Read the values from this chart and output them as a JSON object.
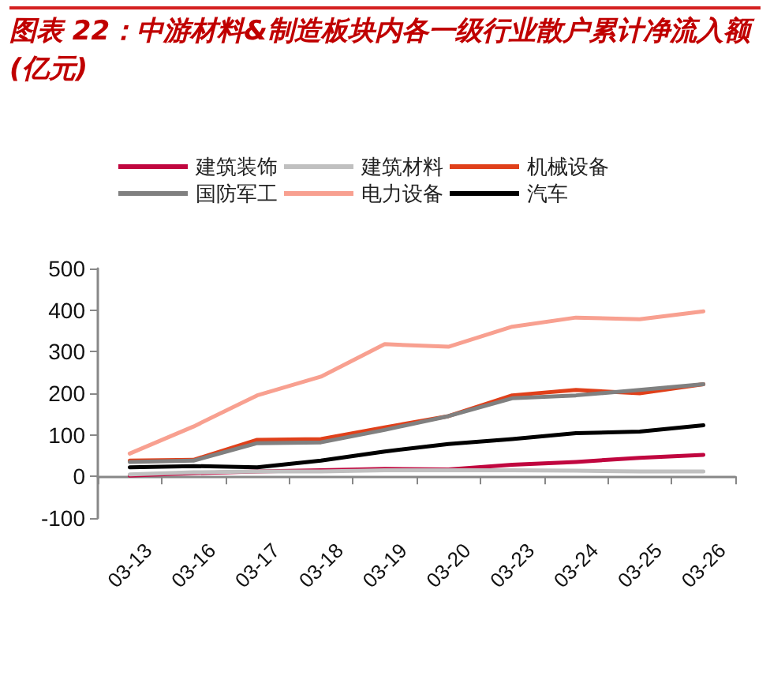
{
  "chart_data": {
    "type": "line",
    "title": "图表 22：中游材料&制造板块内各一级行业散户累计净流入额(亿元)",
    "categories": [
      "03-13",
      "03-16",
      "03-17",
      "03-18",
      "03-19",
      "03-20",
      "03-23",
      "03-24",
      "03-25",
      "03-26"
    ],
    "series": [
      {
        "name": "建筑装饰",
        "color": "#c0063f",
        "values": [
          2,
          8,
          12,
          15,
          18,
          17,
          28,
          35,
          45,
          52
        ]
      },
      {
        "name": "建筑材料",
        "color": "#c0c0c0",
        "values": [
          5,
          10,
          12,
          12,
          15,
          15,
          15,
          14,
          12,
          12
        ]
      },
      {
        "name": "机械设备",
        "color": "#e0401a",
        "values": [
          38,
          40,
          88,
          90,
          118,
          145,
          195,
          208,
          200,
          222
        ]
      },
      {
        "name": "国防军工",
        "color": "#808080",
        "values": [
          35,
          38,
          80,
          82,
          112,
          145,
          188,
          195,
          208,
          222
        ]
      },
      {
        "name": "电力设备",
        "color": "#f8a090",
        "values": [
          55,
          120,
          195,
          240,
          318,
          312,
          360,
          382,
          378,
          397
        ]
      },
      {
        "name": "汽车",
        "color": "#000000",
        "values": [
          22,
          25,
          22,
          38,
          60,
          78,
          90,
          104,
          108,
          123
        ]
      }
    ],
    "ylim": [
      -100,
      500
    ],
    "yticks": [
      -100,
      0,
      100,
      200,
      300,
      400,
      500
    ],
    "legend": "top",
    "marker": "none",
    "line_style": "solid"
  }
}
